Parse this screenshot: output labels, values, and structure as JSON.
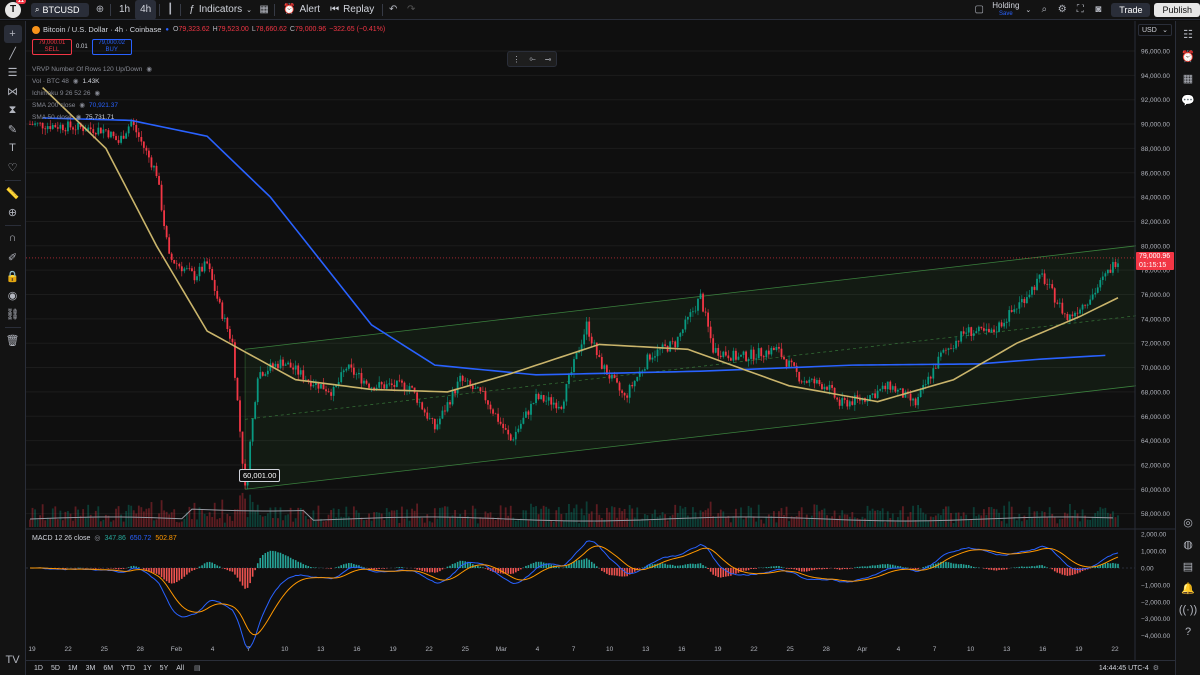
{
  "top_bar": {
    "logo_letter": "T",
    "logo_badge": "11",
    "symbol": "BTCUSD",
    "timeframes": [
      "1h",
      "4h"
    ],
    "active_timeframe": "4h",
    "indicators_label": "Indicators",
    "alert_label": "Alert",
    "replay_label": "Replay",
    "holding_label": "Holding",
    "holding_sub": "Save",
    "trade_label": "Trade",
    "publish_label": "Publish"
  },
  "legend": {
    "title": "Bitcoin / U.S. Dollar · 4h · Coinbase",
    "ohlc": [
      {
        "k": "O",
        "v": "79,323.62"
      },
      {
        "k": "H",
        "v": "79,523.00"
      },
      {
        "k": "L",
        "v": "78,660.62"
      },
      {
        "k": "C",
        "v": "79,000.96"
      }
    ],
    "change": "−322.65 (−0.41%)",
    "sell_price": "79,000.01",
    "sell_label": "SELL",
    "spread": "0.01",
    "buy_price": "79,000.02",
    "buy_label": "BUY",
    "indicators": [
      {
        "name": "VRVP Number Of Rows 120 Up/Down",
        "value": "",
        "value_color": "#868993"
      },
      {
        "name": "Vol · BTC 48",
        "value": "1.43K",
        "value_color": "#d1d4dc"
      },
      {
        "name": "Ichimoku 9 26 52 26",
        "value": "",
        "value_color": "#868993"
      },
      {
        "name": "SMA 200 close",
        "value": "70,921.37",
        "value_color": "#2962ff"
      },
      {
        "name": "SMA 50 close",
        "value": "75,731.71",
        "value_color": "#d1d4dc"
      }
    ],
    "macd_name": "MACD 12 26 close",
    "macd_values": [
      "347.86",
      "650.72",
      "502.87"
    ]
  },
  "currency": "USD",
  "price_axis": [
    "96,000.00",
    "94,000.00",
    "92,000.00",
    "90,000.00",
    "88,000.00",
    "86,000.00",
    "84,000.00",
    "82,000.00",
    "80,000.00",
    "78,000.00",
    "76,000.00",
    "74,000.00",
    "72,000.00",
    "70,000.00",
    "68,000.00",
    "66,000.00",
    "64,000.00",
    "62,000.00",
    "60,000.00",
    "58,000.00"
  ],
  "last_price_label": "79,000.96",
  "countdown_label": "01:15:15",
  "low_callout": "60,001.00",
  "macd_axis": [
    "2,000.00",
    "1,000.00",
    "0.00",
    "−1,000.00",
    "−2,000.00",
    "−3,000.00",
    "−4,000.00"
  ],
  "date_axis": [
    "19",
    "22",
    "25",
    "28",
    "Feb",
    "4",
    "7",
    "10",
    "13",
    "16",
    "19",
    "22",
    "25",
    "Mar",
    "4",
    "7",
    "10",
    "13",
    "16",
    "19",
    "22",
    "25",
    "28",
    "Apr",
    "4",
    "7",
    "10",
    "13",
    "16",
    "19",
    "22"
  ],
  "ranges": [
    "1D",
    "5D",
    "1M",
    "3M",
    "6M",
    "YTD",
    "1Y",
    "5Y",
    "All"
  ],
  "clock": "14:44:45 UTC-4",
  "colors": {
    "up": "#089981",
    "down": "#f23645",
    "sma200": "#2962ff",
    "sma50": "#c9b46b",
    "channel": "#4caf50"
  },
  "chart_data": {
    "type": "candlestick",
    "interval": "4h",
    "sma200_key": [
      [
        1,
        90500
      ],
      [
        8,
        90300
      ],
      [
        14,
        89000
      ],
      [
        19,
        84000
      ],
      [
        27,
        73500
      ],
      [
        32,
        70200
      ],
      [
        40,
        69400
      ],
      [
        53,
        69700
      ],
      [
        65,
        70200
      ],
      [
        75,
        70300
      ],
      [
        80,
        70700
      ],
      [
        85,
        71000
      ]
    ],
    "sma50_key": [
      [
        1,
        93000
      ],
      [
        6,
        88000
      ],
      [
        10,
        80000
      ],
      [
        14,
        73000
      ],
      [
        21,
        69000
      ],
      [
        27,
        68200
      ],
      [
        33,
        68000
      ],
      [
        38,
        69500
      ],
      [
        45,
        71900
      ],
      [
        52,
        71500
      ],
      [
        60,
        68500
      ],
      [
        67,
        67200
      ],
      [
        73,
        69000
      ],
      [
        78,
        72000
      ],
      [
        83,
        74200
      ],
      [
        86,
        75732
      ]
    ],
    "price_key": [
      [
        0,
        90000
      ],
      [
        3,
        89800
      ],
      [
        6,
        89500
      ],
      [
        7,
        88500
      ],
      [
        8,
        90200
      ],
      [
        10,
        86000
      ],
      [
        11,
        79000
      ],
      [
        13,
        77500
      ],
      [
        14,
        78500
      ],
      [
        15,
        75000
      ],
      [
        16,
        72000
      ],
      [
        17,
        60001
      ],
      [
        18,
        69500
      ],
      [
        20,
        70500
      ],
      [
        22,
        69000
      ],
      [
        24,
        68000
      ],
      [
        25,
        70000
      ],
      [
        27,
        68500
      ],
      [
        30,
        68500
      ],
      [
        32,
        65000
      ],
      [
        34,
        69000
      ],
      [
        36,
        67500
      ],
      [
        38,
        64000
      ],
      [
        40,
        67500
      ],
      [
        42,
        67000
      ],
      [
        44,
        73500
      ],
      [
        45,
        70500
      ],
      [
        47,
        67500
      ],
      [
        49,
        71000
      ],
      [
        51,
        72000
      ],
      [
        53,
        75800
      ],
      [
        54,
        71500
      ],
      [
        56,
        70800
      ],
      [
        59,
        71500
      ],
      [
        61,
        69000
      ],
      [
        63,
        68500
      ],
      [
        64,
        67000
      ],
      [
        66,
        67500
      ],
      [
        68,
        68500
      ],
      [
        70,
        67000
      ],
      [
        72,
        71000
      ],
      [
        74,
        73000
      ],
      [
        76,
        72800
      ],
      [
        78,
        75000
      ],
      [
        80,
        77500
      ],
      [
        82,
        74000
      ],
      [
        84,
        76000
      ],
      [
        86,
        79001
      ]
    ]
  }
}
